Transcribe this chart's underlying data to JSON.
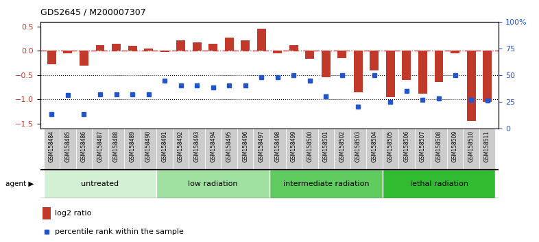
{
  "title": "GDS2645 / M200007307",
  "samples": [
    "GSM158484",
    "GSM158485",
    "GSM158486",
    "GSM158487",
    "GSM158488",
    "GSM158489",
    "GSM158490",
    "GSM158491",
    "GSM158492",
    "GSM158493",
    "GSM158494",
    "GSM158495",
    "GSM158496",
    "GSM158497",
    "GSM158498",
    "GSM158499",
    "GSM158500",
    "GSM158501",
    "GSM158502",
    "GSM158503",
    "GSM158504",
    "GSM158505",
    "GSM158506",
    "GSM158507",
    "GSM158508",
    "GSM158509",
    "GSM158510",
    "GSM158511"
  ],
  "log2_ratio": [
    -0.28,
    -0.05,
    -0.3,
    0.12,
    0.14,
    0.1,
    0.05,
    -0.02,
    0.22,
    0.18,
    0.15,
    0.28,
    0.22,
    0.46,
    -0.05,
    0.12,
    -0.16,
    -0.54,
    -0.15,
    -0.85,
    -0.4,
    -0.95,
    -0.6,
    -0.88,
    -0.65,
    -0.05,
    -1.45,
    -1.05
  ],
  "percentile_rank": [
    13,
    31,
    13,
    32,
    32,
    32,
    32,
    45,
    40,
    40,
    38,
    40,
    40,
    48,
    48,
    50,
    45,
    30,
    50,
    20,
    50,
    25,
    35,
    27,
    28,
    50,
    27,
    26
  ],
  "groups": [
    {
      "label": "untreated",
      "start": 0,
      "end": 7,
      "color": "#d4f0d4"
    },
    {
      "label": "low radiation",
      "start": 7,
      "end": 14,
      "color": "#a0e0a0"
    },
    {
      "label": "intermediate radiation",
      "start": 14,
      "end": 21,
      "color": "#60cc60"
    },
    {
      "label": "lethal radiation",
      "start": 21,
      "end": 28,
      "color": "#30bb30"
    }
  ],
  "bar_color": "#c0392b",
  "dot_color": "#2255cc",
  "ylim_left": [
    -1.6,
    0.6
  ],
  "ylim_right": [
    0,
    100
  ],
  "yticks_left": [
    -1.5,
    -1.0,
    -0.5,
    0.0,
    0.5
  ],
  "yticks_right": [
    0,
    25,
    50,
    75,
    100
  ],
  "hline_dashed_color": "#cc3333",
  "hlines_dotted": [
    -0.5,
    -1.0
  ],
  "background_color": "#ffffff",
  "xtick_bg": "#cccccc"
}
